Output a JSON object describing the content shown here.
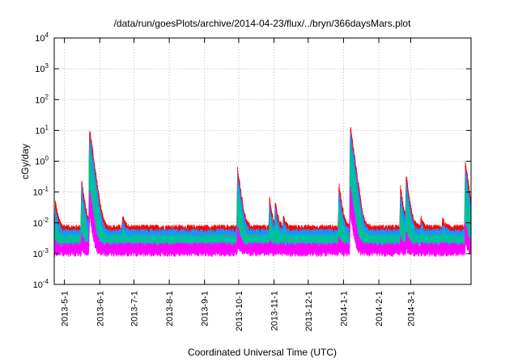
{
  "chart_data": {
    "type": "area",
    "title": "/data/run/goesPlots/archive/2014-04-23/flux/../bryn/366daysMars.plot",
    "xlabel": "Coordinated Universal Time (UTC)",
    "ylabel": "cGy/day",
    "yscale": "log",
    "ylim": [
      0.0001,
      10000
    ],
    "y_ticks": [
      {
        "value": 0.0001,
        "base": "10",
        "exp": "-4"
      },
      {
        "value": 0.001,
        "base": "10",
        "exp": "-3"
      },
      {
        "value": 0.01,
        "base": "10",
        "exp": "-2"
      },
      {
        "value": 0.1,
        "base": "10",
        "exp": "-1"
      },
      {
        "value": 1,
        "base": "10",
        "exp": "0"
      },
      {
        "value": 10,
        "base": "10",
        "exp": "1"
      },
      {
        "value": 100,
        "base": "10",
        "exp": "2"
      },
      {
        "value": 1000,
        "base": "10",
        "exp": "3"
      },
      {
        "value": 10000,
        "base": "10",
        "exp": "4"
      }
    ],
    "xlim": [
      "2013-04-22",
      "2014-04-23"
    ],
    "x_ticks": [
      {
        "date": "2013-05-01",
        "label": "2013-5-1"
      },
      {
        "date": "2013-06-01",
        "label": "2013-6-1"
      },
      {
        "date": "2013-07-01",
        "label": "2013-7-1"
      },
      {
        "date": "2013-08-01",
        "label": "2013-8-1"
      },
      {
        "date": "2013-09-01",
        "label": "2013-9-1"
      },
      {
        "date": "2013-10-01",
        "label": "2013-10-1"
      },
      {
        "date": "2013-11-01",
        "label": "2013-11-1"
      },
      {
        "date": "2013-12-01",
        "label": "2013-12-1"
      },
      {
        "date": "2014-01-01",
        "label": "2014-1-1"
      },
      {
        "date": "2014-02-01",
        "label": "2014-2-1"
      },
      {
        "date": "2014-03-01",
        "label": "2014-3-1"
      }
    ],
    "grid": true,
    "series_colors": [
      "#ff0000",
      "#1e90ff",
      "#00c0a0",
      "#ff00ff"
    ],
    "series": [
      {
        "color": "#ff0000",
        "baseline_value": 0.006
      },
      {
        "color": "#1e90ff",
        "baseline_value": 0.0045
      },
      {
        "color": "#00c0a0",
        "baseline_value": 0.003
      },
      {
        "color": "#ff00ff",
        "baseline_value": 0.0016
      }
    ],
    "events": [
      {
        "date": "2013-04-23",
        "peak": 0.04
      },
      {
        "date": "2013-05-16",
        "peak": 0.2
      },
      {
        "date": "2013-05-23",
        "peak": 10
      },
      {
        "date": "2013-06-21",
        "peak": 0.015
      },
      {
        "date": "2013-09-30",
        "peak": 0.5
      },
      {
        "date": "2013-10-28",
        "peak": 0.05
      },
      {
        "date": "2013-11-02",
        "peak": 0.04
      },
      {
        "date": "2013-11-09",
        "peak": 0.015
      },
      {
        "date": "2013-12-28",
        "peak": 0.15
      },
      {
        "date": "2014-01-07",
        "peak": 12
      },
      {
        "date": "2014-02-20",
        "peak": 0.12
      },
      {
        "date": "2014-02-25",
        "peak": 0.3
      },
      {
        "date": "2014-03-10",
        "peak": 0.012
      },
      {
        "date": "2014-03-29",
        "peak": 0.012
      },
      {
        "date": "2014-04-18",
        "peak": 0.8
      }
    ]
  }
}
